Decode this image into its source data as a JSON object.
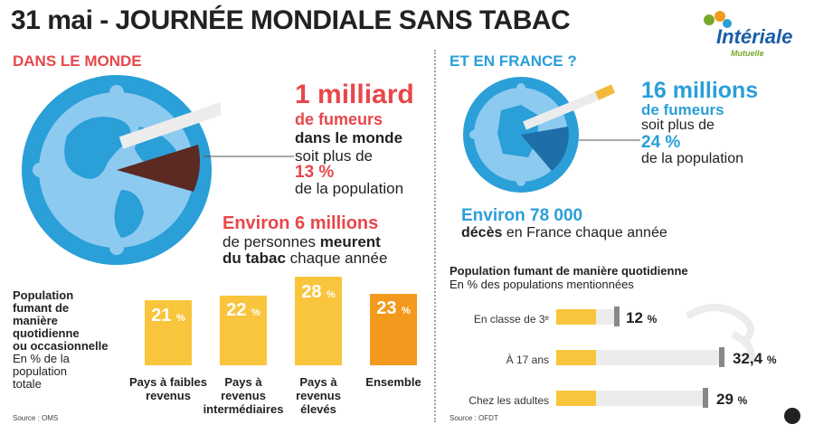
{
  "header": {
    "title": "31 mai - JOURNÉE MONDIALE SANS TABAC",
    "logo_name": "Intériale",
    "logo_sub": "Mutuelle",
    "accent_red": "#e8474b",
    "accent_blue": "#2a9fd8"
  },
  "world": {
    "section_title": "DANS LE MONDE",
    "smokers_value": "1 milliard",
    "smokers_unit": "de fumeurs",
    "smokers_where": "dans le monde",
    "smokers_more": "soit plus de",
    "smokers_pct": "13 %",
    "smokers_pop": "de la population",
    "deaths_value": "Environ 6 millions",
    "deaths_line1_a": "de personnes ",
    "deaths_line1_b": "meurent",
    "deaths_line2_a": "du tabac",
    "deaths_line2_b": " chaque année",
    "share_fraction": 0.13
  },
  "world_chart": {
    "label_l1": "Population",
    "label_l2": "fumant de",
    "label_l3": "manière",
    "label_l4": "quotidienne",
    "label_l5": "ou occasionnelle",
    "label_l6": "En % de la",
    "label_l7": "population",
    "label_l8": "totale",
    "source": "Source : OMS",
    "cat1_l1": "Pays à faibles",
    "cat1_l2": "revenus",
    "cat2_l1": "Pays à",
    "cat2_l2": "revenus",
    "cat2_l3": "intermédiaires",
    "cat3_l1": "Pays à",
    "cat3_l2": "revenus",
    "cat3_l3": "élevés",
    "cat4_l1": "Ensemble",
    "v1": "21",
    "v2": "22",
    "v3": "28",
    "v4": "23",
    "pct": "%"
  },
  "france": {
    "section_title": "ET EN FRANCE ?",
    "smokers_value": "16 millions",
    "smokers_unit": "de fumeurs",
    "smokers_more": "soit plus de",
    "smokers_pct": "24 %",
    "smokers_pop": "de la population",
    "deaths_value": "Environ 78 000",
    "deaths_bold": "décès",
    "deaths_rest": " en France chaque année",
    "share_fraction": 0.24
  },
  "france_chart": {
    "title": "Population fumant de manière quotidienne",
    "subtitle": "En % des populations mentionnées",
    "source": "Source : OFDT",
    "r1_label": "En classe de 3ᵉ",
    "r2_label": "À 17 ans",
    "r3_label": "Chez les adultes",
    "r1_value": "12",
    "r2_value": "32,4",
    "r3_value": "29",
    "pct": "%"
  },
  "chart_data": [
    {
      "type": "bar",
      "categories": [
        "Pays à faibles revenus",
        "Pays à revenus intermédiaires",
        "Pays à revenus élevés",
        "Ensemble"
      ],
      "values": [
        21,
        22,
        28,
        23
      ],
      "title": "Population fumant de manière quotidienne ou occasionnelle",
      "ylabel": "En % de la population totale"
    },
    {
      "type": "bar",
      "orientation": "horizontal",
      "categories": [
        "En classe de 3ᵉ",
        "À 17 ans",
        "Chez les adultes"
      ],
      "values": [
        12,
        32.4,
        29
      ],
      "title": "Population fumant de manière quotidienne",
      "subtitle": "En % des populations mentionnées"
    }
  ]
}
